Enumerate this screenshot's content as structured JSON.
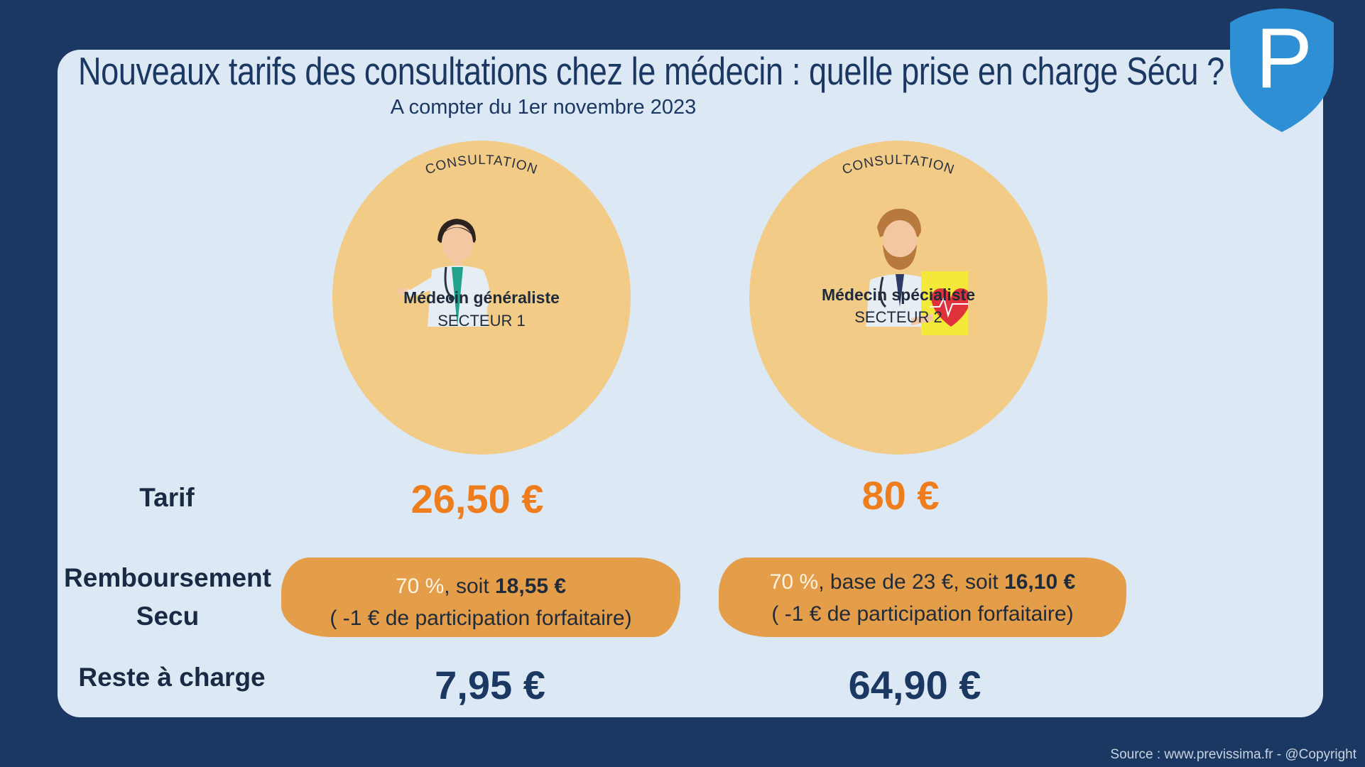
{
  "title": "Nouveaux tarifs des consultations chez le médecin : quelle prise en charge Sécu ?",
  "subtitle": "A compter du 1er novembre 2023",
  "logo_letter": "P",
  "consultation_label": "CONSULTATION",
  "cards": [
    {
      "name": "Médecin généraliste",
      "sector": "SECTEUR 1"
    },
    {
      "name": "Médecin spécialiste",
      "sector": "SECTEUR 2"
    }
  ],
  "rows": {
    "tarif_label": "Tarif",
    "remb_label_1": "Remboursement",
    "remb_label_2": "Secu",
    "reste_label": "Reste à charge"
  },
  "tarifs": [
    "26,50 €",
    "80 €"
  ],
  "remboursements": [
    {
      "pct": "70 %",
      "mid": ", soit ",
      "amount": "18,55 €",
      "note": "( -1 € de participation forfaitaire)"
    },
    {
      "pct": "70 %",
      "mid": ", base de 23 €, soit ",
      "amount": "16,10 €",
      "note": "( -1 € de participation forfaitaire)"
    }
  ],
  "restes": [
    "7,95 €",
    "64,90 €"
  ],
  "source": "Source : www.previssima.fr - @Copyright",
  "colors": {
    "navy": "#1b3863",
    "card": "#dce8f4",
    "circle": "#f2cb86",
    "orange": "#ee7d1d",
    "pill": "#e49d48",
    "logo": "#2e8fd4"
  }
}
